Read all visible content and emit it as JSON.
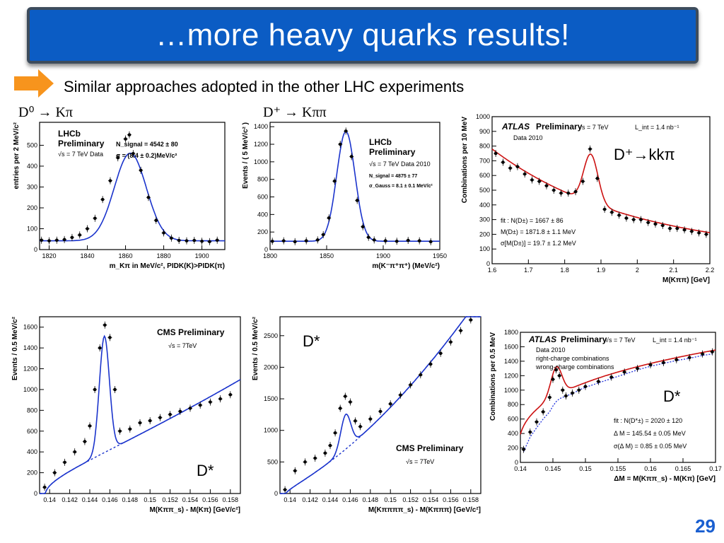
{
  "title": "…more heavy quarks results!",
  "subtitle": "Similar approaches adopted in the other LHC experiments",
  "page_number": "29",
  "annotations": {
    "atlas_dplus": "D⁺→kkπ",
    "cms_left": "D*",
    "cms_right": "D*",
    "atlas_dstar": "D*"
  },
  "colors": {
    "banner": "#0b5cc4",
    "arrow": "#f7941d",
    "fit_blue": "#1a33cc",
    "fit_red": "#cc1111",
    "pagenum": "#1a5fd0"
  },
  "chart_data": [
    {
      "type": "scatter",
      "panel": "lhcb-d0",
      "decay": "D⁰ → Kπ",
      "xlabel": "m_Kπ in MeV/c², PIDK(K)>PIDK(π)",
      "ylabel": "entries per 2 MeV/c²",
      "xlim": [
        1815,
        1912
      ],
      "ylim": [
        0,
        610
      ],
      "xticks": [
        1820,
        1840,
        1860,
        1880,
        1900
      ],
      "yticks": [
        0,
        100,
        200,
        300,
        400,
        500
      ],
      "labels": [
        "LHCb",
        "Preliminary",
        "√s = 7 TeV Data"
      ],
      "stats": [
        "N_signal = 4542 ± 80",
        "σ = (8.4 ± 0.2)MeV/c²"
      ],
      "x": [
        1816,
        1820,
        1824,
        1828,
        1832,
        1836,
        1840,
        1844,
        1848,
        1852,
        1856,
        1860,
        1862,
        1864,
        1868,
        1872,
        1876,
        1880,
        1884,
        1888,
        1892,
        1896,
        1900,
        1904,
        1908
      ],
      "y": [
        45,
        42,
        45,
        48,
        58,
        70,
        100,
        150,
        240,
        330,
        440,
        530,
        550,
        460,
        380,
        250,
        140,
        80,
        55,
        44,
        42,
        44,
        40,
        38,
        45
      ],
      "fit": {
        "amp": 420,
        "mean": 1862.5,
        "sigma": 8.4,
        "bg": 42
      }
    },
    {
      "type": "scatter",
      "panel": "lhcb-dplus",
      "decay": "D⁺ → Kππ",
      "xlabel": "m(K⁻π⁺π⁺) (MeV/c²)",
      "ylabel": "Events / ( 5 MeV/c² )",
      "xlim": [
        1800,
        1950
      ],
      "ylim": [
        0,
        1450
      ],
      "xticks": [
        1800,
        1850,
        1900,
        1950
      ],
      "yticks": [
        0,
        200,
        400,
        600,
        800,
        1000,
        1200,
        1400
      ],
      "labels": [
        "LHCb",
        "Preliminary",
        "√s = 7 TeV Data 2010"
      ],
      "stats": [
        "N_signal = 4875 ± 77",
        "σ_Gauss = 8.1 ± 0.1 MeV/c²"
      ],
      "x": [
        1802,
        1812,
        1822,
        1832,
        1842,
        1847,
        1852,
        1857,
        1862,
        1867,
        1872,
        1877,
        1882,
        1887,
        1892,
        1902,
        1912,
        1922,
        1932,
        1942
      ],
      "y": [
        95,
        100,
        90,
        100,
        110,
        170,
        360,
        780,
        1200,
        1350,
        1060,
        560,
        260,
        140,
        110,
        100,
        95,
        105,
        100,
        90
      ],
      "fit": {
        "amp": 1250,
        "mean": 1867,
        "sigma": 8.1,
        "bg": 95
      }
    },
    {
      "type": "scatter",
      "panel": "atlas-dplus",
      "xlabel": "M(Kππ) [GeV]",
      "ylabel": "Combinations per 10 MeV",
      "xlim": [
        1.6,
        2.2
      ],
      "ylim": [
        0,
        1000
      ],
      "xticks": [
        1.6,
        1.7,
        1.8,
        1.9,
        2.0,
        2.1,
        2.2
      ],
      "xticklabels": [
        "1.6",
        "1.7",
        "1.8",
        "1.9",
        "2",
        "2.1",
        "2.2"
      ],
      "yticks": [
        0,
        100,
        200,
        300,
        400,
        500,
        600,
        700,
        800,
        900,
        1000
      ],
      "labels": [
        "ATLAS",
        "Preliminary",
        "√s = 7 TeV",
        "L_int = 1.4 nb⁻¹",
        "Data 2010"
      ],
      "stats": [
        "fit  : N(D±) = 1667 ± 86",
        "M(D±) = 1871.8 ± 1.1 MeV",
        "σ[M(D±)] = 19.7 ± 1.2 MeV"
      ],
      "x": [
        1.61,
        1.63,
        1.65,
        1.67,
        1.69,
        1.71,
        1.73,
        1.75,
        1.77,
        1.79,
        1.81,
        1.83,
        1.85,
        1.87,
        1.89,
        1.91,
        1.93,
        1.95,
        1.97,
        1.99,
        2.01,
        2.03,
        2.05,
        2.07,
        2.09,
        2.11,
        2.13,
        2.15,
        2.17,
        2.19
      ],
      "y": [
        750,
        690,
        650,
        660,
        610,
        570,
        560,
        530,
        500,
        480,
        480,
        490,
        560,
        780,
        580,
        370,
        350,
        330,
        310,
        300,
        300,
        280,
        270,
        260,
        240,
        240,
        230,
        220,
        210,
        200
      ],
      "fit": {
        "amp": 330,
        "mean": 1.872,
        "sigma": 0.0197,
        "bg0": 720,
        "bgslope": -2.6
      }
    },
    {
      "type": "scatter",
      "panel": "cms-d0",
      "xlabel": "M(Kππ_s) - M(Kπ) [GeV/c²]",
      "ylabel": "Events / 0.5 MeV/c²",
      "xlim": [
        0.139,
        0.159
      ],
      "ylim": [
        0,
        1700
      ],
      "xticks": [
        0.14,
        0.142,
        0.144,
        0.146,
        0.148,
        0.15,
        0.152,
        0.154,
        0.156,
        0.158
      ],
      "yticks": [
        0,
        200,
        400,
        600,
        800,
        1000,
        1200,
        1400,
        1600
      ],
      "labels": [
        "CMS Preliminary",
        "√s = 7TeV"
      ],
      "x": [
        0.1395,
        0.1405,
        0.1415,
        0.1425,
        0.1435,
        0.144,
        0.1445,
        0.145,
        0.1455,
        0.146,
        0.1465,
        0.147,
        0.148,
        0.149,
        0.15,
        0.151,
        0.152,
        0.153,
        0.154,
        0.155,
        0.156,
        0.157,
        0.158
      ],
      "y": [
        60,
        200,
        300,
        400,
        500,
        650,
        1000,
        1400,
        1620,
        1500,
        1000,
        600,
        620,
        680,
        700,
        730,
        760,
        790,
        820,
        850,
        880,
        910,
        950
      ],
      "fit": {
        "amp": 1120,
        "mean": 0.14545,
        "sigma": 0.0005,
        "bgk": 1.0
      }
    },
    {
      "type": "scatter",
      "panel": "cms-d0k3pi",
      "xlabel": "M(Kππππ_s) - M(Kπππ) [GeV/c²]",
      "ylabel": "Events / 0.5 MeV/c²",
      "xlim": [
        0.139,
        0.159
      ],
      "ylim": [
        0,
        2800
      ],
      "xticks": [
        0.14,
        0.142,
        0.144,
        0.146,
        0.148,
        0.15,
        0.152,
        0.154,
        0.156,
        0.158
      ],
      "yticks": [
        0,
        500,
        1000,
        1500,
        2000,
        2500
      ],
      "labels": [
        "CMS Preliminary",
        "√s = 7TeV"
      ],
      "x": [
        0.1395,
        0.1405,
        0.1415,
        0.1425,
        0.1435,
        0.144,
        0.1445,
        0.145,
        0.1455,
        0.146,
        0.1465,
        0.147,
        0.148,
        0.149,
        0.15,
        0.151,
        0.152,
        0.153,
        0.154,
        0.155,
        0.156,
        0.157,
        0.158
      ],
      "y": [
        60,
        360,
        500,
        560,
        640,
        760,
        960,
        1350,
        1540,
        1450,
        1150,
        1060,
        1180,
        1300,
        1420,
        1560,
        1720,
        1880,
        2050,
        2220,
        2400,
        2580,
        2750
      ],
      "fit": {
        "amp": 550,
        "mean": 0.14555,
        "sigma": 0.0005
      }
    },
    {
      "type": "scatter",
      "panel": "atlas-dstar",
      "xlabel": "ΔM = M(Kππ_s) - M(Kπ)  [GeV]",
      "ylabel": "Combinations per 0.5 MeV",
      "xlim": [
        0.14,
        0.17
      ],
      "ylim": [
        0,
        1800
      ],
      "xticks": [
        0.14,
        0.145,
        0.15,
        0.155,
        0.16,
        0.165,
        0.17
      ],
      "yticks": [
        0,
        200,
        400,
        600,
        800,
        1000,
        1200,
        1400,
        1600,
        1800
      ],
      "labels": [
        "ATLAS",
        "Preliminary",
        "√s = 7 TeV",
        "L_int = 1.4 nb⁻¹",
        "Data 2010",
        "right-charge combinations",
        "wrong-charge combinations"
      ],
      "stats": [
        "fit  : N(D*±) = 2020 ± 120",
        "Δ M = 145.54 ± 0.05 MeV",
        "σ(Δ M) = 0.85 ± 0.05 MeV"
      ],
      "x": [
        0.1405,
        0.1415,
        0.1425,
        0.1435,
        0.1445,
        0.145,
        0.1455,
        0.146,
        0.1465,
        0.147,
        0.148,
        0.149,
        0.15,
        0.152,
        0.154,
        0.156,
        0.158,
        0.16,
        0.162,
        0.164,
        0.166,
        0.168,
        0.1695
      ],
      "y": [
        180,
        420,
        560,
        700,
        900,
        1150,
        1280,
        1200,
        1000,
        920,
        960,
        1000,
        1050,
        1120,
        1180,
        1250,
        1300,
        1350,
        1380,
        1420,
        1450,
        1500,
        1530
      ],
      "wrong_y": [
        150,
        350,
        480,
        600,
        700,
        780,
        840,
        880,
        900,
        920,
        950,
        1000,
        1040,
        1100,
        1160,
        1220,
        1280,
        1330,
        1370,
        1410,
        1440,
        1480,
        1500
      ],
      "fit": {
        "amp": 400,
        "mean": 0.14554,
        "sigma": 0.00085
      }
    }
  ]
}
